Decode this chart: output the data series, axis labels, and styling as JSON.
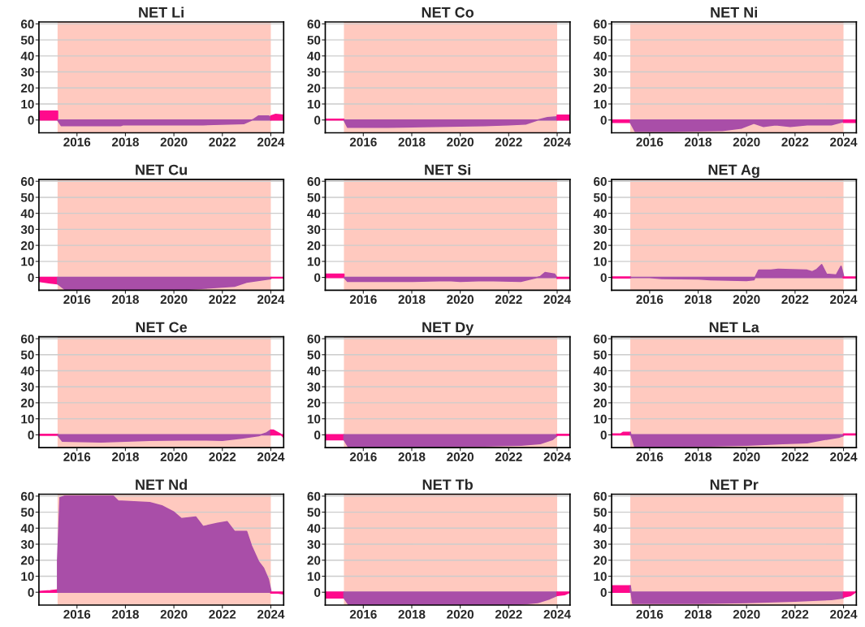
{
  "chart_data": [
    {
      "type": "area",
      "title": "NET Li",
      "xlim": [
        2014.43,
        2024.53
      ],
      "ylim": [
        -8,
        61.2
      ],
      "xticks": [
        2016,
        2018,
        2020,
        2022,
        2024
      ],
      "yticks": [
        0,
        10,
        20,
        30,
        40,
        50,
        60
      ],
      "grid": "y",
      "bands": [
        {
          "axis": "x",
          "from": 2015.2,
          "to": 2024.0,
          "color": "#ffc9bf"
        }
      ],
      "series": [
        {
          "color": "#ff0a8c",
          "x": [
            2014.43,
            2015.2
          ],
          "values": [
            5.5,
            5.5
          ]
        },
        {
          "color": "#a94ea8",
          "x": [
            2015.2,
            2015.35,
            2017.8,
            2017.9,
            2021.2,
            2022.9,
            2023.3,
            2023.5,
            2023.9,
            2024.0
          ],
          "values": [
            0,
            -3.5,
            -3.5,
            -3,
            -3,
            -2.2,
            0.5,
            2.5,
            2.5,
            1.5
          ]
        },
        {
          "color": "#ff0a8c",
          "x": [
            2024.0,
            2024.2,
            2024.53
          ],
          "values": [
            2.5,
            3.5,
            3
          ]
        }
      ]
    },
    {
      "type": "area",
      "title": "NET Co",
      "xlim": [
        2014.43,
        2024.53
      ],
      "ylim": [
        -8,
        61.2
      ],
      "xticks": [
        2016,
        2018,
        2020,
        2022,
        2024
      ],
      "yticks": [
        0,
        10,
        20,
        30,
        40,
        50,
        60
      ],
      "grid": "y",
      "bands": [
        {
          "axis": "x",
          "from": 2015.2,
          "to": 2024.0,
          "color": "#ffc9bf"
        }
      ],
      "series": [
        {
          "color": "#ff0a8c",
          "x": [
            2014.43,
            2015.2
          ],
          "values": [
            0.5,
            0.5
          ]
        },
        {
          "color": "#a94ea8",
          "x": [
            2015.2,
            2015.35,
            2017,
            2019,
            2021,
            2022,
            2022.7,
            2023.2,
            2023.6,
            2024.0
          ],
          "values": [
            0,
            -4.5,
            -4.5,
            -4,
            -3.5,
            -3,
            -2.5,
            0,
            1.5,
            2
          ]
        },
        {
          "color": "#ff0a8c",
          "x": [
            2024.0,
            2024.53
          ],
          "values": [
            3,
            3
          ]
        }
      ]
    },
    {
      "type": "area",
      "title": "NET Ni",
      "xlim": [
        2014.43,
        2024.53
      ],
      "ylim": [
        -8,
        61.2
      ],
      "xticks": [
        2016,
        2018,
        2020,
        2022,
        2024
      ],
      "yticks": [
        0,
        10,
        20,
        30,
        40,
        50,
        60
      ],
      "grid": "y",
      "bands": [
        {
          "axis": "x",
          "from": 2015.2,
          "to": 2024.0,
          "color": "#ffc9bf"
        }
      ],
      "series": [
        {
          "color": "#ff0a8c",
          "x": [
            2014.43,
            2015.2
          ],
          "values": [
            -1.5,
            -1.5
          ]
        },
        {
          "color": "#a94ea8",
          "x": [
            2015.2,
            2015.4,
            2017,
            2019,
            2019.8,
            2020.3,
            2020.7,
            2021.2,
            2021.8,
            2022.5,
            2023.5,
            2024.0
          ],
          "values": [
            -1.5,
            -7,
            -7,
            -6.5,
            -5,
            -2,
            -4,
            -3,
            -4,
            -3,
            -3,
            -1
          ]
        },
        {
          "color": "#ff0a8c",
          "x": [
            2024.0,
            2024.53
          ],
          "values": [
            -1.5,
            -1.5
          ]
        }
      ]
    },
    {
      "type": "area",
      "title": "NET Cu",
      "xlim": [
        2014.43,
        2024.53
      ],
      "ylim": [
        -8,
        61.2
      ],
      "xticks": [
        2016,
        2018,
        2020,
        2022,
        2024
      ],
      "yticks": [
        0,
        10,
        20,
        30,
        40,
        50,
        60
      ],
      "grid": "y",
      "bands": [
        {
          "axis": "x",
          "from": 2015.2,
          "to": 2024.0,
          "color": "#ffc9bf"
        }
      ],
      "series": [
        {
          "color": "#ff0a8c",
          "x": [
            2014.43,
            2014.9,
            2015.2
          ],
          "values": [
            -2.5,
            -3.5,
            -4
          ]
        },
        {
          "color": "#a94ea8",
          "x": [
            2015.2,
            2015.5,
            2020.5,
            2021.5,
            2022.5,
            2023,
            2023.7,
            2024.0
          ],
          "values": [
            -4,
            -7.5,
            -7.5,
            -6.5,
            -5.5,
            -3,
            -1.5,
            -0.8
          ]
        },
        {
          "color": "#ff0a8c",
          "x": [
            2024.0,
            2024.53
          ],
          "values": [
            -0.3,
            -0.3
          ]
        }
      ]
    },
    {
      "type": "area",
      "title": "NET Si",
      "xlim": [
        2014.43,
        2024.53
      ],
      "ylim": [
        -8,
        61.2
      ],
      "xticks": [
        2016,
        2018,
        2020,
        2022,
        2024
      ],
      "yticks": [
        0,
        10,
        20,
        30,
        40,
        50,
        60
      ],
      "grid": "y",
      "bands": [
        {
          "axis": "x",
          "from": 2015.2,
          "to": 2024.0,
          "color": "#ffc9bf"
        }
      ],
      "series": [
        {
          "color": "#ff0a8c",
          "x": [
            2014.43,
            2015.2
          ],
          "values": [
            2,
            2
          ]
        },
        {
          "color": "#a94ea8",
          "x": [
            2015.2,
            2015.35,
            2018,
            2019.5,
            2020,
            2021,
            2022.5,
            2023.3,
            2023.5,
            2023.9,
            2024.0
          ],
          "values": [
            0,
            -2.5,
            -2.5,
            -2,
            -2.5,
            -2,
            -2.5,
            0.5,
            3,
            2,
            -0.5
          ]
        },
        {
          "color": "#ff0a8c",
          "x": [
            2024.0,
            2024.53
          ],
          "values": [
            -0.5,
            -0.5
          ]
        }
      ]
    },
    {
      "type": "area",
      "title": "NET Ag",
      "xlim": [
        2014.43,
        2024.53
      ],
      "ylim": [
        -8,
        61.2
      ],
      "xticks": [
        2016,
        2018,
        2020,
        2022,
        2024
      ],
      "yticks": [
        0,
        10,
        20,
        30,
        40,
        50,
        60
      ],
      "grid": "y",
      "bands": [
        {
          "axis": "x",
          "from": 2015.2,
          "to": 2024.0,
          "color": "#ffc9bf"
        }
      ],
      "series": [
        {
          "type": "line",
          "color": "#ff0a8c",
          "x": [
            2014.43,
            2015.2
          ],
          "values": [
            0,
            0
          ]
        },
        {
          "color": "#a94ea8",
          "x": [
            2015.2,
            2016,
            2016.5,
            2018,
            2018.5,
            2020,
            2020.3,
            2020.5,
            2021,
            2021.3,
            2022.5,
            2022.7,
            2022.9,
            2023.1,
            2023.3,
            2023.7,
            2023.9,
            2024.0
          ],
          "values": [
            0,
            0,
            -0.7,
            -1,
            -1.5,
            -2,
            -1.5,
            4.5,
            4.5,
            5,
            4.5,
            3.5,
            5,
            8,
            2,
            1.5,
            7,
            1
          ]
        },
        {
          "type": "line",
          "color": "#ff0a8c",
          "x": [
            2024.0,
            2024.53
          ],
          "values": [
            0,
            0
          ]
        }
      ]
    },
    {
      "type": "area",
      "title": "NET Ce",
      "xlim": [
        2014.43,
        2024.53
      ],
      "ylim": [
        -8,
        61.2
      ],
      "xticks": [
        2016,
        2018,
        2020,
        2022,
        2024
      ],
      "yticks": [
        0,
        10,
        20,
        30,
        40,
        50,
        60
      ],
      "grid": "y",
      "bands": [
        {
          "axis": "x",
          "from": 2015.2,
          "to": 2024.0,
          "color": "#ffc9bf"
        }
      ],
      "series": [
        {
          "type": "line",
          "color": "#ff0a8c",
          "x": [
            2014.43,
            2015.2
          ],
          "values": [
            0,
            0
          ]
        },
        {
          "color": "#a94ea8",
          "x": [
            2015.2,
            2015.4,
            2017,
            2019,
            2021,
            2022,
            2022.8,
            2023.5,
            2023.8,
            2024.0
          ],
          "values": [
            0,
            -4,
            -4.5,
            -3.5,
            -3,
            -3.5,
            -2,
            -0.5,
            1,
            3
          ]
        },
        {
          "color": "#ff0a8c",
          "x": [
            2024.0,
            2024.1,
            2024.4,
            2024.53
          ],
          "values": [
            3,
            3,
            0.5,
            -1.5
          ]
        }
      ]
    },
    {
      "type": "area",
      "title": "NET Dy",
      "xlim": [
        2014.43,
        2024.53
      ],
      "ylim": [
        -8,
        61.2
      ],
      "xticks": [
        2016,
        2018,
        2020,
        2022,
        2024
      ],
      "yticks": [
        0,
        10,
        20,
        30,
        40,
        50,
        60
      ],
      "grid": "y",
      "bands": [
        {
          "axis": "x",
          "from": 2015.2,
          "to": 2024.0,
          "color": "#ffc9bf"
        }
      ],
      "series": [
        {
          "color": "#ff0a8c",
          "x": [
            2014.43,
            2015.2
          ],
          "values": [
            -3,
            -3
          ]
        },
        {
          "color": "#a94ea8",
          "x": [
            2015.2,
            2015.4,
            2019,
            2021,
            2022.5,
            2023.3,
            2023.8,
            2024.0
          ],
          "values": [
            -3,
            -8,
            -7.5,
            -7,
            -6.5,
            -5.5,
            -3,
            -0.5
          ]
        },
        {
          "type": "line",
          "color": "#ff0a8c",
          "x": [
            2024.0,
            2024.53
          ],
          "values": [
            0,
            0
          ]
        }
      ]
    },
    {
      "type": "area",
      "title": "NET La",
      "xlim": [
        2014.43,
        2024.53
      ],
      "ylim": [
        -8,
        61.2
      ],
      "xticks": [
        2016,
        2018,
        2020,
        2022,
        2024
      ],
      "yticks": [
        0,
        10,
        20,
        30,
        40,
        50,
        60
      ],
      "grid": "y",
      "bands": [
        {
          "axis": "x",
          "from": 2015.2,
          "to": 2024.0,
          "color": "#ffc9bf"
        }
      ],
      "series": [
        {
          "color": "#ff0a8c",
          "x": [
            2014.43,
            2014.8,
            2014.9,
            2015.2
          ],
          "values": [
            0.5,
            0.5,
            1.5,
            1.5
          ]
        },
        {
          "color": "#a94ea8",
          "x": [
            2015.2,
            2015.4,
            2016.8,
            2018.5,
            2020,
            2021.5,
            2022.5,
            2023.2,
            2023.8,
            2024.0
          ],
          "values": [
            1.5,
            -8,
            -7.5,
            -7,
            -6.5,
            -5.5,
            -5,
            -3,
            -1.5,
            -0.5
          ]
        },
        {
          "color": "#ff0a8c",
          "x": [
            2024.0,
            2024.53
          ],
          "values": [
            0.5,
            0.5
          ]
        }
      ]
    },
    {
      "type": "area",
      "title": "NET Nd",
      "xlim": [
        2014.43,
        2024.53
      ],
      "ylim": [
        -8,
        61.2
      ],
      "xticks": [
        2016,
        2018,
        2020,
        2022,
        2024
      ],
      "yticks": [
        0,
        10,
        20,
        30,
        40,
        50,
        60
      ],
      "grid": "y",
      "bands": [
        {
          "axis": "x",
          "from": 2015.2,
          "to": 2024.0,
          "color": "#ffc9bf"
        }
      ],
      "series": [
        {
          "color": "#ff0a8c",
          "x": [
            2014.43,
            2014.9,
            2015.2
          ],
          "values": [
            0.5,
            1,
            1.5
          ]
        },
        {
          "color": "#a94ea8",
          "x": [
            2015.2,
            2015.3,
            2015.5,
            2017.5,
            2017.7,
            2019,
            2019.5,
            2020,
            2020.3,
            2020.9,
            2021.2,
            2021.8,
            2022.2,
            2022.5,
            2023,
            2023.2,
            2023.5,
            2023.7,
            2023.9,
            2024.0
          ],
          "values": [
            20,
            59,
            60,
            60,
            57,
            56,
            54,
            50,
            46,
            47,
            41,
            43,
            44,
            38,
            38,
            29,
            19,
            15,
            8,
            1
          ]
        },
        {
          "color": "#ff0a8c",
          "x": [
            2024.0,
            2024.3,
            2024.53
          ],
          "values": [
            -0.5,
            -0.5,
            -1
          ]
        }
      ]
    },
    {
      "type": "area",
      "title": "NET Tb",
      "xlim": [
        2014.43,
        2024.53
      ],
      "ylim": [
        -8,
        61.2
      ],
      "xticks": [
        2016,
        2018,
        2020,
        2022,
        2024
      ],
      "yticks": [
        0,
        10,
        20,
        30,
        40,
        50,
        60
      ],
      "grid": "y",
      "bands": [
        {
          "axis": "x",
          "from": 2015.2,
          "to": 2024.0,
          "color": "#ffc9bf"
        }
      ],
      "series": [
        {
          "color": "#ff0a8c",
          "x": [
            2014.43,
            2015.2
          ],
          "values": [
            -3.5,
            -3.5
          ]
        },
        {
          "color": "#a94ea8",
          "x": [
            2015.2,
            2015.4,
            2021,
            2022.5,
            2023.2,
            2023.7,
            2024.0
          ],
          "values": [
            -3.5,
            -7.8,
            -7.8,
            -7.5,
            -6.5,
            -4,
            -2
          ]
        },
        {
          "color": "#ff0a8c",
          "x": [
            2024.0,
            2024.3,
            2024.53
          ],
          "values": [
            -2,
            -1.5,
            0
          ]
        }
      ]
    },
    {
      "type": "area",
      "title": "NET Pr",
      "xlim": [
        2014.43,
        2024.53
      ],
      "ylim": [
        -8,
        61.2
      ],
      "xticks": [
        2016,
        2018,
        2020,
        2022,
        2024
      ],
      "yticks": [
        0,
        10,
        20,
        30,
        40,
        50,
        60
      ],
      "grid": "y",
      "bands": [
        {
          "axis": "x",
          "from": 2015.2,
          "to": 2024.0,
          "color": "#ffc9bf"
        }
      ],
      "series": [
        {
          "color": "#ff0a8c",
          "x": [
            2014.43,
            2015.2
          ],
          "values": [
            4,
            4
          ]
        },
        {
          "color": "#a94ea8",
          "x": [
            2015.2,
            2015.3,
            2018,
            2020,
            2022,
            2023.5,
            2024.0
          ],
          "values": [
            4,
            -7,
            -7,
            -6.5,
            -5.5,
            -4.5,
            -3.5
          ]
        },
        {
          "color": "#ff0a8c",
          "x": [
            2024.0,
            2024.3,
            2024.53
          ],
          "values": [
            -3,
            -2,
            0.5
          ]
        }
      ]
    }
  ]
}
